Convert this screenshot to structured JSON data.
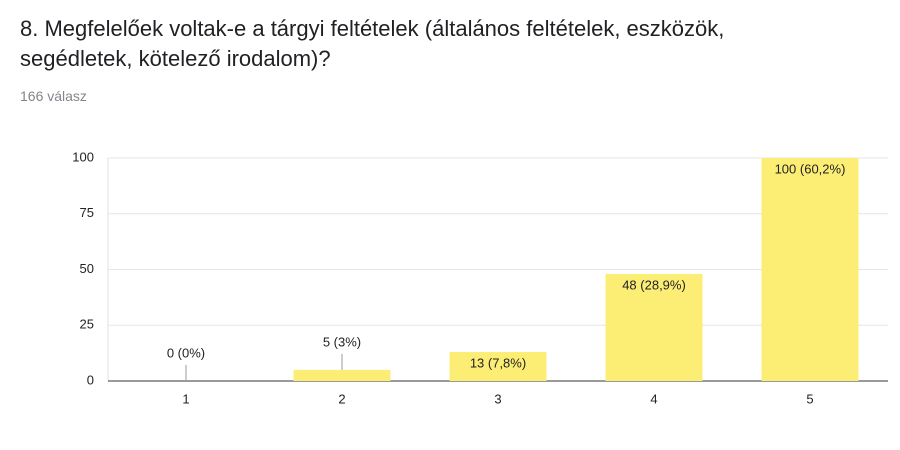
{
  "chart_data": {
    "type": "bar",
    "title": "8. Megfelelőek voltak-e a tárgyi feltételek (általános feltételek, eszközök, segédletek, kötelező irodalom)?",
    "subtitle": "166 válasz",
    "categories": [
      "1",
      "2",
      "3",
      "4",
      "5"
    ],
    "values": [
      0,
      5,
      13,
      48,
      100
    ],
    "value_labels": [
      "0 (0%)",
      "5 (3%)",
      "13 (7,8%)",
      "48 (28,9%)",
      "100 (60,2%)"
    ],
    "color": "#fcee75",
    "ylim": [
      0,
      100
    ],
    "yticks": [
      0,
      25,
      50,
      75,
      100
    ],
    "grid": true
  }
}
